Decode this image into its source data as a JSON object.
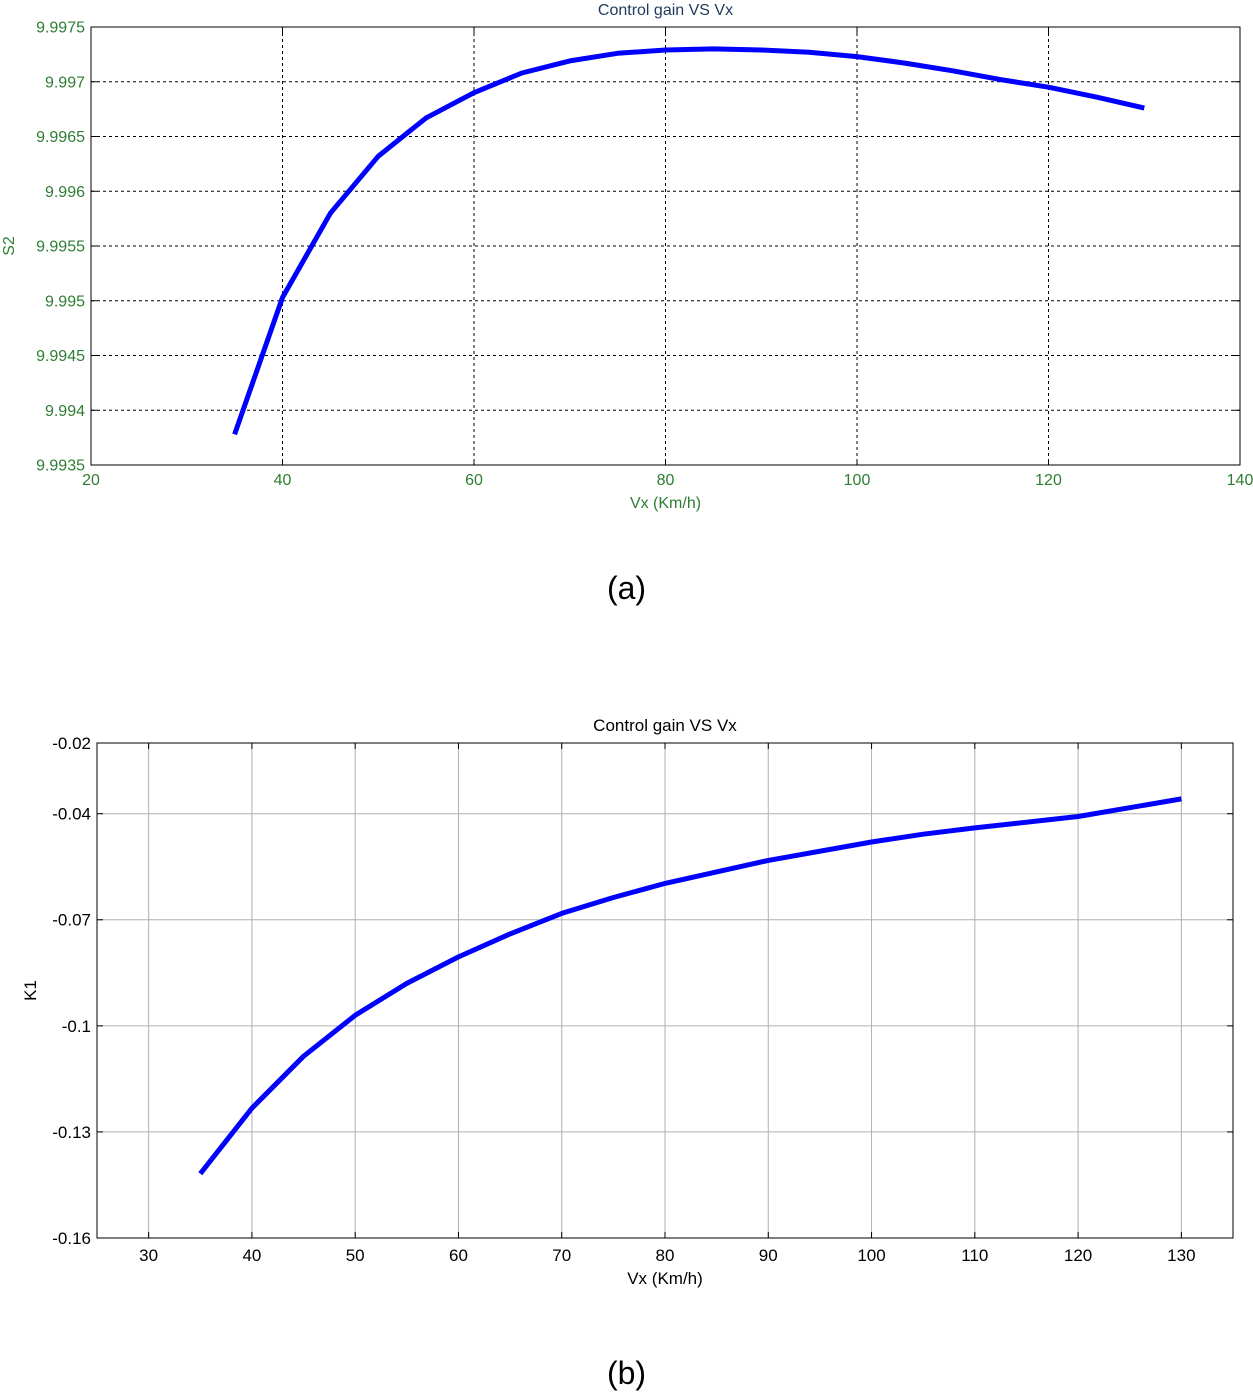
{
  "charts": [
    {
      "type": "line",
      "title": "Control gain VS Vx",
      "xlabel": "Vx (Km/h)",
      "ylabel": "S2",
      "xlim": [
        20,
        140
      ],
      "ylim": [
        9.9935,
        9.9975
      ],
      "xticks": [
        20,
        40,
        60,
        80,
        100,
        120,
        140
      ],
      "xtick_labels": [
        "20",
        "40",
        "60",
        "80",
        "100",
        "120",
        "140"
      ],
      "yticks": [
        9.9935,
        9.994,
        9.9945,
        9.995,
        9.9955,
        9.996,
        9.9965,
        9.997,
        9.9975
      ],
      "ytick_labels": [
        "9.9935",
        "9.994",
        "9.9945",
        "9.995",
        "9.9955",
        "9.996",
        "9.9965",
        "9.997",
        "9.9975"
      ],
      "grid": "dashed",
      "text_color": "#2e7d32",
      "title_color": "#1f3a5a",
      "caption": "(a)",
      "series": [
        {
          "color": "#0000ff",
          "x": [
            35,
            40,
            45,
            50,
            55,
            60,
            65,
            70,
            75,
            80,
            85,
            90,
            95,
            100,
            105,
            110,
            115,
            120,
            125,
            130
          ],
          "y": [
            9.99378,
            9.99503,
            9.9958,
            9.99632,
            9.99667,
            9.9969,
            9.99708,
            9.99719,
            9.99726,
            9.99729,
            9.9973,
            9.99729,
            9.99727,
            9.99723,
            9.99717,
            9.9971,
            9.99702,
            9.99695,
            9.99686,
            9.99676
          ]
        }
      ]
    },
    {
      "type": "line",
      "title": "Control gain VS Vx",
      "xlabel": "Vx (Km/h)",
      "ylabel": "K1",
      "xlim": [
        25,
        135
      ],
      "ylim": [
        -0.16,
        -0.02
      ],
      "xticks": [
        30,
        40,
        50,
        60,
        70,
        80,
        90,
        100,
        110,
        120,
        130
      ],
      "xtick_labels": [
        "30",
        "40",
        "50",
        "60",
        "70",
        "80",
        "90",
        "100",
        "110",
        "120",
        "130"
      ],
      "yticks": [
        -0.16,
        -0.13,
        -0.1,
        -0.07,
        -0.04,
        -0.02
      ],
      "ytick_labels": [
        "-0.16",
        "-0.13",
        "-0.1",
        "-0.07",
        "-0.04",
        "-0.02"
      ],
      "grid": "solid",
      "text_color": "#000000",
      "title_color": "#000000",
      "caption": "(b)",
      "series": [
        {
          "color": "#0000ff",
          "x": [
            35,
            40,
            45,
            50,
            55,
            60,
            65,
            70,
            75,
            80,
            90,
            100,
            105,
            110,
            120,
            130
          ],
          "y": [
            -0.1418,
            -0.1233,
            -0.1086,
            -0.097,
            -0.088,
            -0.0805,
            -0.074,
            -0.0682,
            -0.0637,
            -0.0597,
            -0.0532,
            -0.048,
            -0.0458,
            -0.044,
            -0.0408,
            -0.0358
          ]
        }
      ]
    }
  ],
  "chart_data": [
    {
      "type": "line",
      "title": "Control gain VS Vx",
      "xlabel": "Vx (Km/h)",
      "ylabel": "S2",
      "xlim": [
        20,
        140
      ],
      "ylim": [
        9.9935,
        9.9975
      ],
      "grid": true,
      "x": [
        35,
        40,
        45,
        50,
        55,
        60,
        65,
        70,
        75,
        80,
        85,
        90,
        95,
        100,
        105,
        110,
        115,
        120,
        125,
        130
      ],
      "series": [
        {
          "values": [
            9.99378,
            9.99503,
            9.9958,
            9.99632,
            9.99667,
            9.9969,
            9.99708,
            9.99719,
            9.99726,
            9.99729,
            9.9973,
            9.99729,
            9.99727,
            9.99723,
            9.99717,
            9.9971,
            9.99702,
            9.99695,
            9.99686,
            9.99676
          ]
        }
      ]
    },
    {
      "type": "line",
      "title": "Control gain VS Vx",
      "xlabel": "Vx (Km/h)",
      "ylabel": "K1",
      "xlim": [
        25,
        135
      ],
      "ylim": [
        -0.16,
        -0.02
      ],
      "grid": true,
      "x": [
        35,
        40,
        45,
        50,
        55,
        60,
        65,
        70,
        75,
        80,
        90,
        100,
        105,
        110,
        120,
        130
      ],
      "series": [
        {
          "values": [
            -0.1418,
            -0.1233,
            -0.1086,
            -0.097,
            -0.088,
            -0.0805,
            -0.074,
            -0.0682,
            -0.0637,
            -0.0597,
            -0.0532,
            -0.048,
            -0.0458,
            -0.044,
            -0.0408,
            -0.0358
          ]
        }
      ]
    }
  ]
}
